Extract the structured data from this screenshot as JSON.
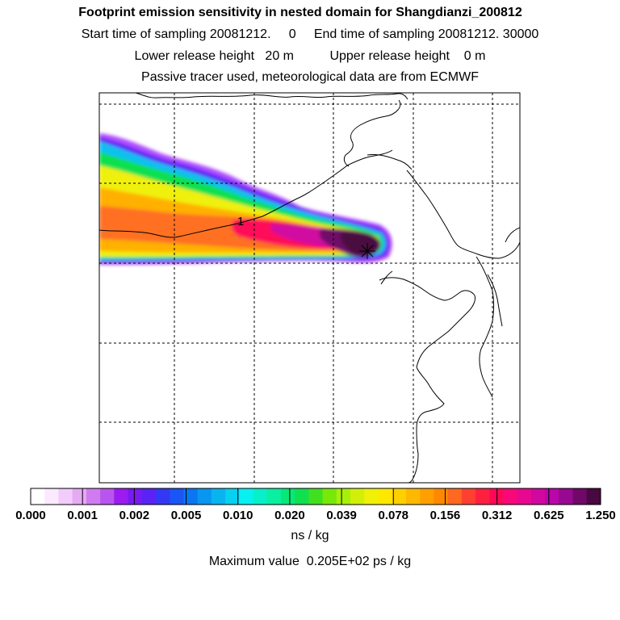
{
  "titles": {
    "line1": "Footprint emission sensitivity in nested domain for Shangdianzi_200812",
    "line2": "Start time of sampling 20081212.     0     End time of sampling 20081212. 30000",
    "line3": "Lower release height   20 m          Upper release height    0 m",
    "line4": "Passive tracer used, meteorological data are from ECMWF"
  },
  "colorbar": {
    "ticks": [
      "0.000",
      "0.001",
      "0.002",
      "0.005",
      "0.010",
      "0.020",
      "0.039",
      "0.078",
      "0.156",
      "0.312",
      "0.625",
      "1.250"
    ],
    "units": "ns / kg",
    "colors": [
      "#ffffff",
      "#fbeaff",
      "#f2ccfa",
      "#e6aaf5",
      "#d07cf0",
      "#b855ee",
      "#9b1cf0",
      "#7a1af2",
      "#5a22f5",
      "#3438f5",
      "#1a55f5",
      "#0a76f2",
      "#0896f0",
      "#08b4f0",
      "#08d0f0",
      "#08f0f0",
      "#08f0c8",
      "#08f0a0",
      "#08e878",
      "#10e050",
      "#40e020",
      "#78e808",
      "#a8f008",
      "#d0f008",
      "#f0f008",
      "#ffe800",
      "#ffd000",
      "#ffb800",
      "#ffa000",
      "#ff8800",
      "#ff6820",
      "#ff4030",
      "#ff2040",
      "#ff0858",
      "#f80878",
      "#e80890",
      "#d008a0",
      "#b808a8",
      "#980890",
      "#700868",
      "#480840"
    ]
  },
  "max_value": "Maximum value  0.205E+02 ps / kg",
  "map_label": "1",
  "chart_data": {
    "type": "heatmap",
    "title": "Footprint emission sensitivity in nested domain for Shangdianzi_200812",
    "value_units": "ns / kg",
    "max_value": "0.205E+02 ps / kg",
    "color_scale_levels": [
      0.0,
      0.001,
      0.002,
      0.005,
      0.01,
      0.02,
      0.039,
      0.078,
      0.156,
      0.312,
      0.625,
      1.25
    ],
    "contour_label": "1",
    "grid": true,
    "legend": "bottom",
    "plume": "Plume extends from the receptor westward to the western edge of the domain, highest near the receptor"
  }
}
